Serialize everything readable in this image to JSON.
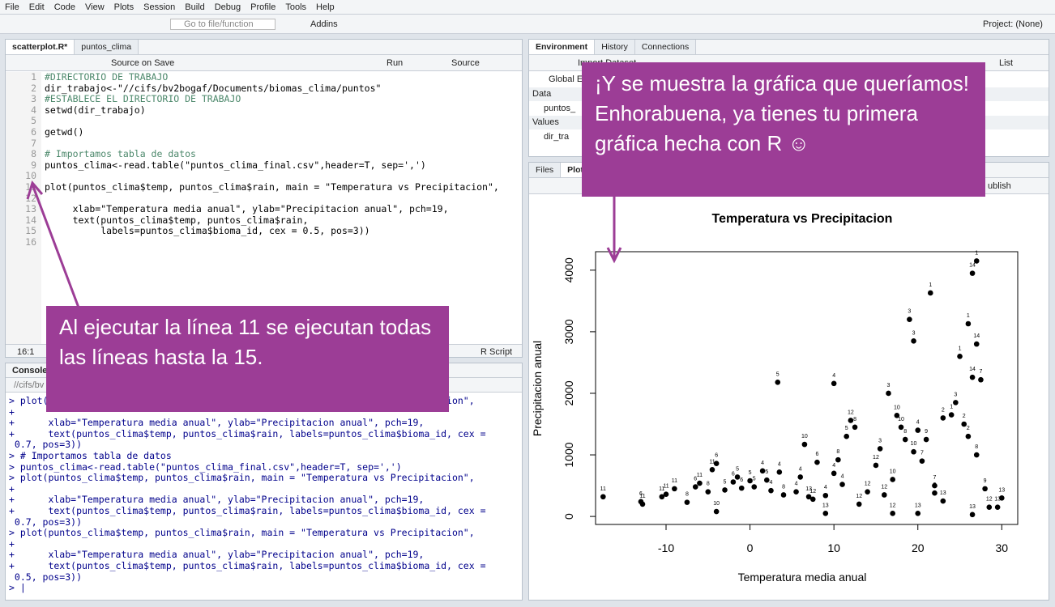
{
  "menu": [
    "File",
    "Edit",
    "Code",
    "View",
    "Plots",
    "Session",
    "Build",
    "Debug",
    "Profile",
    "Tools",
    "Help"
  ],
  "toolbar": {
    "goto": "Go to file/function",
    "addins": "Addins",
    "project": "Project: (None)"
  },
  "editor": {
    "tabs": [
      "scatterplot.R*",
      "puntos_clima"
    ],
    "source_on_save": "Source on Save",
    "run": "Run",
    "source": "Source",
    "lines": [
      "#DIRECTORIO DE TRABAJO",
      "dir_trabajo<-\"//cifs/bv2bogaf/Documents/biomas_clima/puntos\"",
      "#ESTABLECE EL DIRECTORIO DE TRABAJO",
      "setwd(dir_trabajo)",
      "",
      "getwd()",
      "",
      "# Importamos tabla de datos",
      "puntos_clima<-read.table(\"puntos_clima_final.csv\",header=T, sep=',')",
      "",
      "plot(puntos_clima$temp, puntos_clima$rain, main = \"Temperatura vs Precipitacion\",",
      "",
      "     xlab=\"Temperatura media anual\", ylab=\"Precipitacion anual\", pch=19,",
      "     text(puntos_clima$temp, puntos_clima$rain,",
      "          labels=puntos_clima$bioma_id, cex = 0.5, pos=3))",
      ""
    ],
    "line_numbers": [
      "1",
      "2",
      "3",
      "4",
      "5",
      "6",
      "7",
      "8",
      "9",
      "10",
      "11",
      "12",
      "13",
      "14",
      "15",
      "16"
    ],
    "status": "16:1",
    "file_type": "R Script"
  },
  "console": {
    "title": "Console",
    "path": "//cifs/bv",
    "lines": [
      "> plot(puntos_clima$temp, puntos_clima$rain, main = \"Temperatura vs Precipitacion\",",
      "+",
      "+      xlab=\"Temperatura media anual\", ylab=\"Precipitacion anual\", pch=19,",
      "+      text(puntos_clima$temp, puntos_clima$rain, labels=puntos_clima$bioma_id, cex =",
      " 0.7, pos=3))",
      "> # Importamos tabla de datos",
      "> puntos_clima<-read.table(\"puntos_clima_final.csv\",header=T, sep=',')",
      "> plot(puntos_clima$temp, puntos_clima$rain, main = \"Temperatura vs Precipitacion\",",
      "+",
      "+      xlab=\"Temperatura media anual\", ylab=\"Precipitacion anual\", pch=19,",
      "+      text(puntos_clima$temp, puntos_clima$rain, labels=puntos_clima$bioma_id, cex =",
      " 0.7, pos=3))",
      "> plot(puntos_clima$temp, puntos_clima$rain, main = \"Temperatura vs Precipitacion\",",
      "+",
      "+      xlab=\"Temperatura media anual\", ylab=\"Precipitacion anual\", pch=19,",
      "+      text(puntos_clima$temp, puntos_clima$rain, labels=puntos_clima$bioma_id, cex =",
      " 0.5, pos=3))",
      "> |"
    ]
  },
  "environment": {
    "tabs": [
      "Environment",
      "History",
      "Connections"
    ],
    "import": "Import Dataset",
    "scope": "Global En",
    "view": "List",
    "data_header": "Data",
    "data_item": "puntos_",
    "values_header": "Values",
    "values_item": "dir_tra"
  },
  "plots_pane": {
    "tabs": [
      "Files",
      "Plots"
    ],
    "publish": "ublish"
  },
  "annotations": [
    "Al ejecutar la línea 11 se ejecutan todas las líneas hasta la 15.",
    "¡Y se muestra la gráfica que queríamos! Enhorabuena, ya tienes tu primera gráfica hecha con R ☺"
  ],
  "chart_data": {
    "type": "scatter",
    "title": "Temperatura vs Precipitacion",
    "x_label": "Temperatura media anual",
    "y_label": "Precipitacion anual",
    "xlim": [
      -18.4,
      31.9
    ],
    "ylim": [
      -130,
      4300
    ],
    "xticks": [
      -10,
      0,
      10,
      20,
      30
    ],
    "yticks": [
      0,
      1000,
      2000,
      3000,
      4000
    ],
    "color": "#000000",
    "series": [
      {
        "x": [
          -17.5,
          -13,
          -12.8,
          -10.5,
          -10,
          -9,
          -7.5,
          -6.5,
          -6,
          -5,
          -4.5,
          -4,
          -4,
          -3,
          -2,
          -1.5,
          -1,
          0,
          0.5,
          1.5,
          2,
          2.5,
          3.5,
          3.3,
          4,
          5.5,
          6,
          6.5,
          7,
          7.5,
          8,
          9,
          9,
          10,
          10,
          10.5,
          11,
          11.5,
          12,
          12.5,
          13,
          14,
          15,
          15.5,
          16.5,
          17,
          17.5,
          18,
          18.5,
          19,
          19.5,
          19.5,
          20,
          20.5,
          21,
          21.5,
          22,
          22,
          23,
          23,
          24,
          24.5,
          25,
          25.5,
          26,
          26,
          26.5,
          27,
          26.5,
          27,
          27,
          27.5,
          28,
          28.5,
          29.5,
          30,
          26.5,
          17,
          16,
          20
        ],
        "values": [
          320,
          240,
          200,
          320,
          360,
          450,
          230,
          480,
          540,
          400,
          760,
          860,
          80,
          430,
          560,
          640,
          460,
          580,
          480,
          740,
          590,
          420,
          720,
          2180,
          350,
          400,
          640,
          1170,
          320,
          280,
          880,
          340,
          50,
          2160,
          700,
          920,
          520,
          1300,
          1560,
          1450,
          200,
          400,
          830,
          1100,
          2000,
          600,
          1640,
          1450,
          1250,
          3200,
          2850,
          1050,
          1400,
          900,
          1250,
          3630,
          500,
          380,
          1600,
          250,
          1650,
          1850,
          2600,
          1500,
          1300,
          3130,
          3950,
          4150,
          2260,
          2800,
          1000,
          2220,
          450,
          150,
          150,
          300,
          30,
          50,
          350,
          50
        ],
        "point_labels": [
          "11",
          "6",
          "11",
          "11",
          "11",
          "11",
          "8",
          "6",
          "11",
          "8",
          "11",
          "6",
          "10",
          "5",
          "6",
          "5",
          "6",
          "5",
          "5",
          "4",
          "5",
          "4",
          "4",
          "5",
          "8",
          "4",
          "4",
          "10",
          "13",
          "12",
          "6",
          "4",
          "13",
          "4",
          "4",
          "8",
          "4",
          "5",
          "12",
          "8",
          "12",
          "12",
          "12",
          "3",
          "3",
          "10",
          "10",
          "10",
          "8",
          "3",
          "3",
          "10",
          "4",
          "7",
          "9",
          "1",
          "7",
          "3",
          "2",
          "13",
          "1",
          "3",
          "1",
          "2",
          "2",
          "1",
          "14",
          "1",
          "14",
          "14",
          "8",
          "7",
          "9",
          "12",
          "13",
          "13",
          "13",
          "12",
          "12",
          "13"
        ]
      }
    ]
  }
}
